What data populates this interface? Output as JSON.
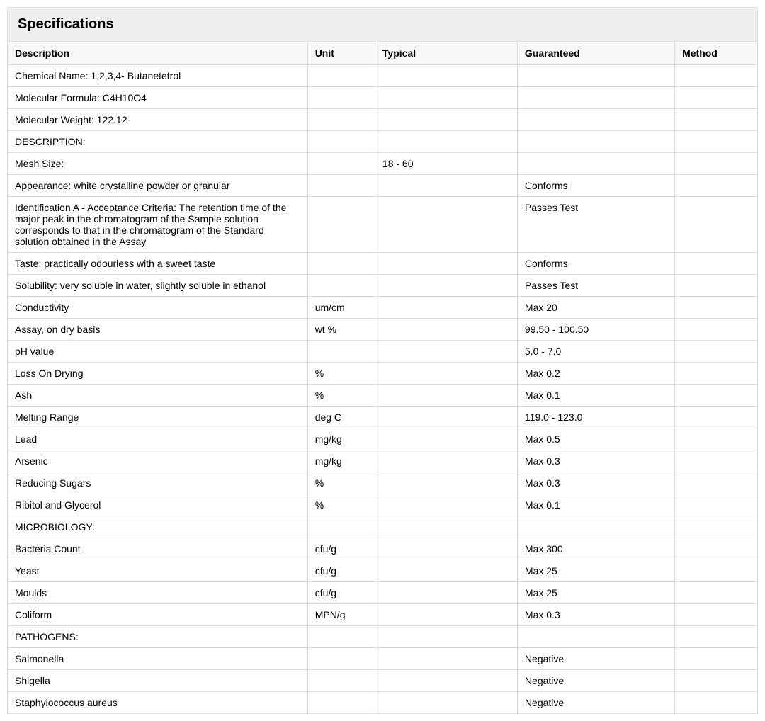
{
  "panel": {
    "title": "Specifications"
  },
  "table": {
    "columns": [
      "Description",
      "Unit",
      "Typical",
      "Guaranteed",
      "Method"
    ],
    "col_classes": [
      "col-desc",
      "col-unit",
      "col-typical",
      "col-guaranteed",
      "col-method"
    ],
    "header_bg": "#f7f7f7",
    "border_color": "#dddddd",
    "font_size": 14,
    "rows": [
      {
        "description": "Chemical Name: 1,2,3,4- Butanetetrol",
        "unit": "",
        "typical": "",
        "guaranteed": "",
        "method": ""
      },
      {
        "description": "Molecular Formula: C4H10O4",
        "unit": "",
        "typical": "",
        "guaranteed": "",
        "method": ""
      },
      {
        "description": "Molecular Weight: 122.12",
        "unit": "",
        "typical": "",
        "guaranteed": "",
        "method": ""
      },
      {
        "description": "DESCRIPTION:",
        "unit": "",
        "typical": "",
        "guaranteed": "",
        "method": ""
      },
      {
        "description": "Mesh Size:",
        "unit": "",
        "typical": "18 - 60",
        "guaranteed": "",
        "method": ""
      },
      {
        "description": "Appearance: white crystalline powder or granular",
        "unit": "",
        "typical": "",
        "guaranteed": "Conforms",
        "method": ""
      },
      {
        "description": "Identification A -  Acceptance Criteria: The retention time of the major peak in the chromatogram of the Sample solution corresponds to that in the chromatogram of the Standard solution obtained in the Assay",
        "unit": "",
        "typical": "",
        "guaranteed": "Passes Test",
        "method": ""
      },
      {
        "description": "Taste: practically odourless with a sweet taste",
        "unit": "",
        "typical": "",
        "guaranteed": "Conforms",
        "method": ""
      },
      {
        "description": "Solubility: very soluble in water, slightly soluble in ethanol",
        "unit": "",
        "typical": "",
        "guaranteed": "Passes Test",
        "method": ""
      },
      {
        "description": "Conductivity",
        "unit": "um/cm",
        "typical": "",
        "guaranteed": "Max 20",
        "method": ""
      },
      {
        "description": "Assay, on dry basis",
        "unit": "wt %",
        "typical": "",
        "guaranteed": "99.50 - 100.50",
        "method": ""
      },
      {
        "description": "pH value",
        "unit": "",
        "typical": "",
        "guaranteed": "5.0 - 7.0",
        "method": ""
      },
      {
        "description": "Loss On Drying",
        "unit": "%",
        "typical": "",
        "guaranteed": "Max 0.2",
        "method": ""
      },
      {
        "description": "Ash",
        "unit": "%",
        "typical": "",
        "guaranteed": "Max 0.1",
        "method": ""
      },
      {
        "description": "Melting Range",
        "unit": "deg C",
        "typical": "",
        "guaranteed": "119.0 - 123.0",
        "method": ""
      },
      {
        "description": "Lead",
        "unit": "mg/kg",
        "typical": "",
        "guaranteed": "Max 0.5",
        "method": ""
      },
      {
        "description": "Arsenic",
        "unit": "mg/kg",
        "typical": "",
        "guaranteed": "Max 0.3",
        "method": ""
      },
      {
        "description": "Reducing Sugars",
        "unit": "%",
        "typical": "",
        "guaranteed": "Max 0.3",
        "method": ""
      },
      {
        "description": "Ribitol and Glycerol",
        "unit": "%",
        "typical": "",
        "guaranteed": "Max 0.1",
        "method": ""
      },
      {
        "description": "MICROBIOLOGY:",
        "unit": "",
        "typical": "",
        "guaranteed": "",
        "method": ""
      },
      {
        "description": "Bacteria Count",
        "unit": "cfu/g",
        "typical": "",
        "guaranteed": "Max 300",
        "method": ""
      },
      {
        "description": "Yeast",
        "unit": "cfu/g",
        "typical": "",
        "guaranteed": "Max 25",
        "method": ""
      },
      {
        "description": "Moulds",
        "unit": "cfu/g",
        "typical": "",
        "guaranteed": "Max 25",
        "method": ""
      },
      {
        "description": "Coliform",
        "unit": "MPN/g",
        "typical": "",
        "guaranteed": "Max 0.3",
        "method": ""
      },
      {
        "description": "PATHOGENS:",
        "unit": "",
        "typical": "",
        "guaranteed": "",
        "method": ""
      },
      {
        "description": "Salmonella",
        "unit": "",
        "typical": "",
        "guaranteed": "Negative",
        "method": ""
      },
      {
        "description": "Shigella",
        "unit": "",
        "typical": "",
        "guaranteed": "Negative",
        "method": ""
      },
      {
        "description": "Staphylococcus aureus",
        "unit": "",
        "typical": "",
        "guaranteed": "Negative",
        "method": ""
      }
    ]
  }
}
